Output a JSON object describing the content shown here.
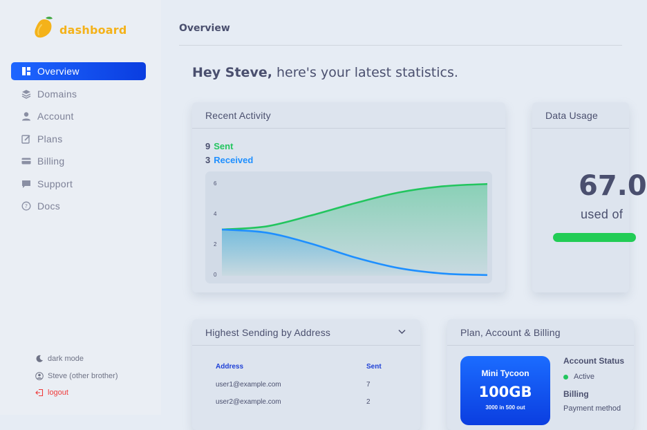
{
  "brand": {
    "name": "dashboard",
    "accent": "#1e66ff",
    "logo_color": "#f4b21a"
  },
  "sidebar": {
    "items": [
      {
        "label": "Overview",
        "icon": "dashboard-icon",
        "active": true
      },
      {
        "label": "Domains",
        "icon": "layers-icon"
      },
      {
        "label": "Account",
        "icon": "user-icon"
      },
      {
        "label": "Plans",
        "icon": "edit-icon"
      },
      {
        "label": "Billing",
        "icon": "credit-card-icon"
      },
      {
        "label": "Support",
        "icon": "chat-icon"
      },
      {
        "label": "Docs",
        "icon": "help-circle-icon"
      }
    ],
    "bottom": {
      "dark_mode": "dark mode",
      "user": "Steve (other brother)",
      "logout": "logout"
    }
  },
  "header": {
    "title": "Overview"
  },
  "greeting": {
    "name": "Hey Steve,",
    "rest": " here's your latest statistics."
  },
  "recent_activity": {
    "title": "Recent Activity",
    "sent_count": "9",
    "sent_label": "Sent",
    "received_count": "3",
    "received_label": "Received",
    "sent_color": "#22c55e",
    "received_color": "#1e8fff"
  },
  "chart_data": {
    "type": "area",
    "y_ticks": [
      "6",
      "4",
      "2",
      "0"
    ],
    "ylim": [
      0,
      6
    ],
    "x": [
      0,
      1,
      2,
      3,
      4,
      5,
      6
    ],
    "series": [
      {
        "values": [
          3,
          3.2,
          3.9,
          4.7,
          5.4,
          5.8,
          5.95
        ],
        "color": "#22c55e"
      },
      {
        "values": [
          3,
          2.8,
          2.1,
          1.2,
          0.5,
          0.15,
          0.05
        ],
        "color": "#1e8fff"
      }
    ],
    "grid": false
  },
  "data_usage": {
    "title": "Data Usage",
    "value": "67.0",
    "sub": "used of",
    "bar_color": "#22cc55"
  },
  "sending": {
    "title": "Highest Sending by Address",
    "columns": [
      "Address",
      "Sent"
    ],
    "rows": [
      [
        "user1@example.com",
        "7"
      ],
      [
        "user2@example.com",
        "2"
      ]
    ]
  },
  "plan": {
    "title": "Plan, Account & Billing",
    "name": "Mini Tycoon",
    "size": "100GB",
    "note": "3000 in 500 out",
    "account_status_label": "Account Status",
    "status": "Active",
    "billing_label": "Billing",
    "payment_label": "Payment method"
  }
}
